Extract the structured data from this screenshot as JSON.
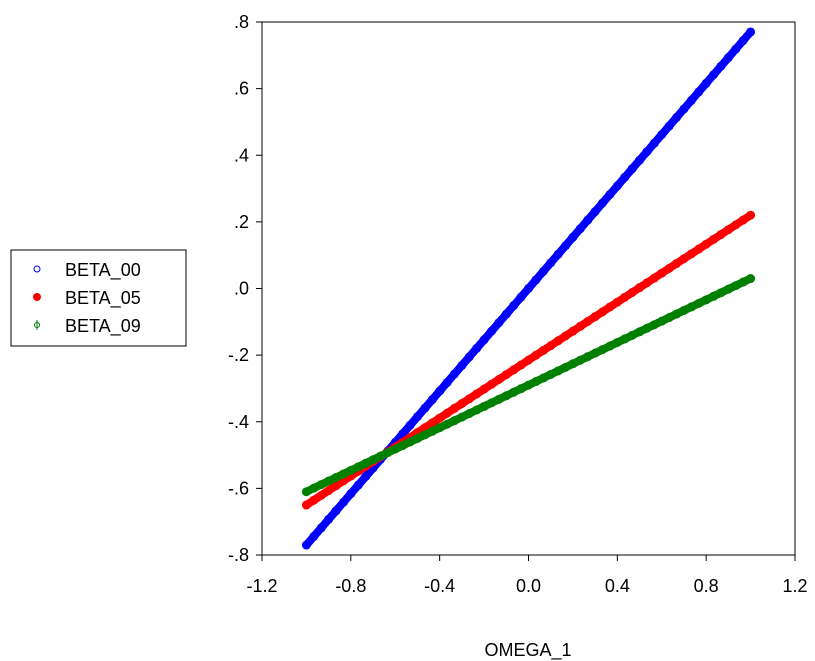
{
  "chart_data": {
    "type": "scatter",
    "xlabel": "OMEGA_1",
    "ylabel": "",
    "xlim": [
      -1.2,
      1.2
    ],
    "ylim": [
      -0.8,
      0.8
    ],
    "xticks": [
      -1.2,
      -0.8,
      -0.4,
      0.0,
      0.4,
      0.8,
      1.2
    ],
    "xtick_labels": [
      "-1.2",
      "-0.8",
      "-0.4",
      "0.0",
      "0.4",
      "0.8",
      "1.2"
    ],
    "yticks": [
      -0.8,
      -0.6,
      -0.4,
      -0.2,
      0.0,
      0.2,
      0.4,
      0.6,
      0.8
    ],
    "ytick_labels": [
      "-.8",
      "-.6",
      "-.4",
      "-.2",
      ".0",
      ".2",
      ".4",
      ".6",
      ".8"
    ],
    "grid": false,
    "legend_position": "left",
    "x_range": [
      -1.0,
      1.0
    ],
    "series": [
      {
        "name": "BETA_00",
        "color": "#0000ff",
        "marker": "open-circle",
        "y_at_x_min": -0.77,
        "y_at_x_max": 0.77
      },
      {
        "name": "BETA_05",
        "color": "#ff0000",
        "marker": "filled-circle",
        "y_at_x_min": -0.65,
        "y_at_x_max": 0.22
      },
      {
        "name": "BETA_09",
        "color": "#008000",
        "marker": "phi-circle",
        "y_at_x_min": -0.61,
        "y_at_x_max": 0.03
      }
    ]
  }
}
